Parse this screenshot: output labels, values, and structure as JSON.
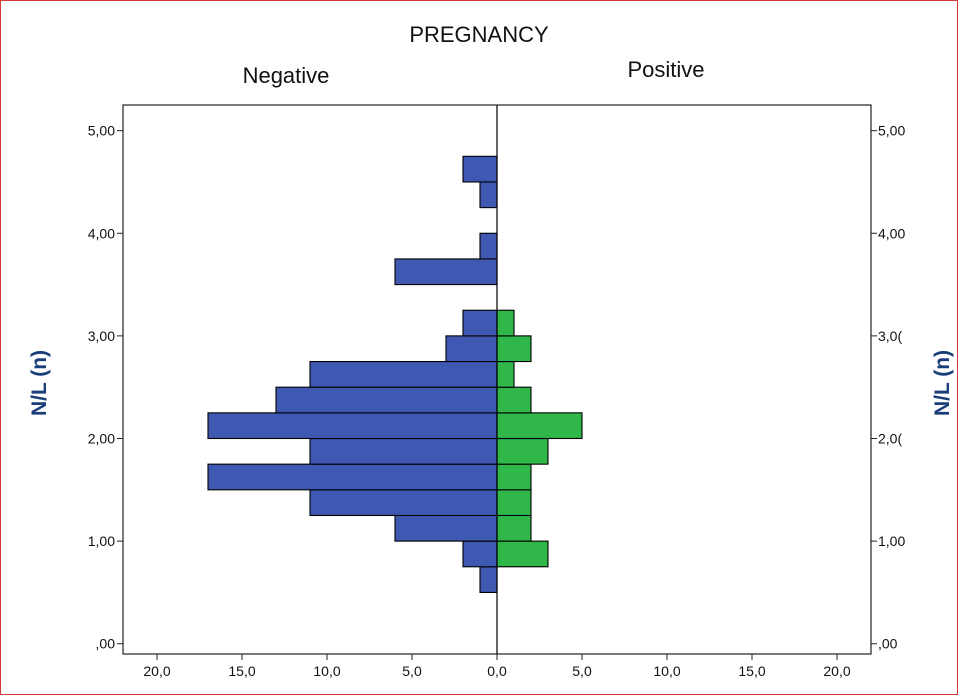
{
  "chart_data": {
    "type": "bar",
    "orientation": "horizontal-back-to-back",
    "title": "PREGNANCY",
    "group_labels": {
      "left": "Negative",
      "right": "Positive"
    },
    "ylabel_left": "N/L (n)",
    "ylabel_right": "N/L (n)",
    "y_ticks": [
      {
        "value": 0,
        "label": ",00"
      },
      {
        "value": 1,
        "label": "1,00"
      },
      {
        "value": 2,
        "label": "2,00"
      },
      {
        "value": 3,
        "label": "3,00"
      },
      {
        "value": 4,
        "label": "4,00"
      },
      {
        "value": 5,
        "label": "5,00"
      }
    ],
    "y_ticks_right": [
      {
        "value": 0,
        "label": ",00"
      },
      {
        "value": 1,
        "label": "1,00"
      },
      {
        "value": 2,
        "label": "2,0("
      },
      {
        "value": 3,
        "label": "3,0("
      },
      {
        "value": 4,
        "label": "4,00"
      },
      {
        "value": 5,
        "label": "5,00"
      }
    ],
    "x_ticks": [
      {
        "value": -20,
        "label": "20,0"
      },
      {
        "value": -15,
        "label": "15,0"
      },
      {
        "value": -10,
        "label": "10,0"
      },
      {
        "value": -5,
        "label": "5,0"
      },
      {
        "value": 0,
        "label": "0,0"
      },
      {
        "value": 5,
        "label": "5,0"
      },
      {
        "value": 10,
        "label": "10,0"
      },
      {
        "value": 15,
        "label": "15,0"
      },
      {
        "value": 20,
        "label": "20,0"
      }
    ],
    "ylim": [
      -0.1,
      5.25
    ],
    "xlim": [
      -22,
      22
    ],
    "bin_width": 0.25,
    "bins": [
      0.5,
      0.75,
      1.0,
      1.25,
      1.5,
      1.75,
      2.0,
      2.25,
      2.5,
      2.75,
      3.0,
      3.5,
      3.75,
      4.25,
      4.5
    ],
    "series": [
      {
        "name": "Negative",
        "side": "left",
        "color": "#3f58b2",
        "values": [
          1,
          2,
          6,
          11,
          17,
          11,
          17,
          13,
          11,
          3,
          2,
          6,
          1,
          1,
          2
        ]
      },
      {
        "name": "Positive",
        "side": "right",
        "color": "#30b74a",
        "values": [
          0,
          3,
          2,
          2,
          2,
          3,
          5,
          2,
          1,
          2,
          1,
          0,
          0,
          0,
          0
        ]
      }
    ]
  }
}
